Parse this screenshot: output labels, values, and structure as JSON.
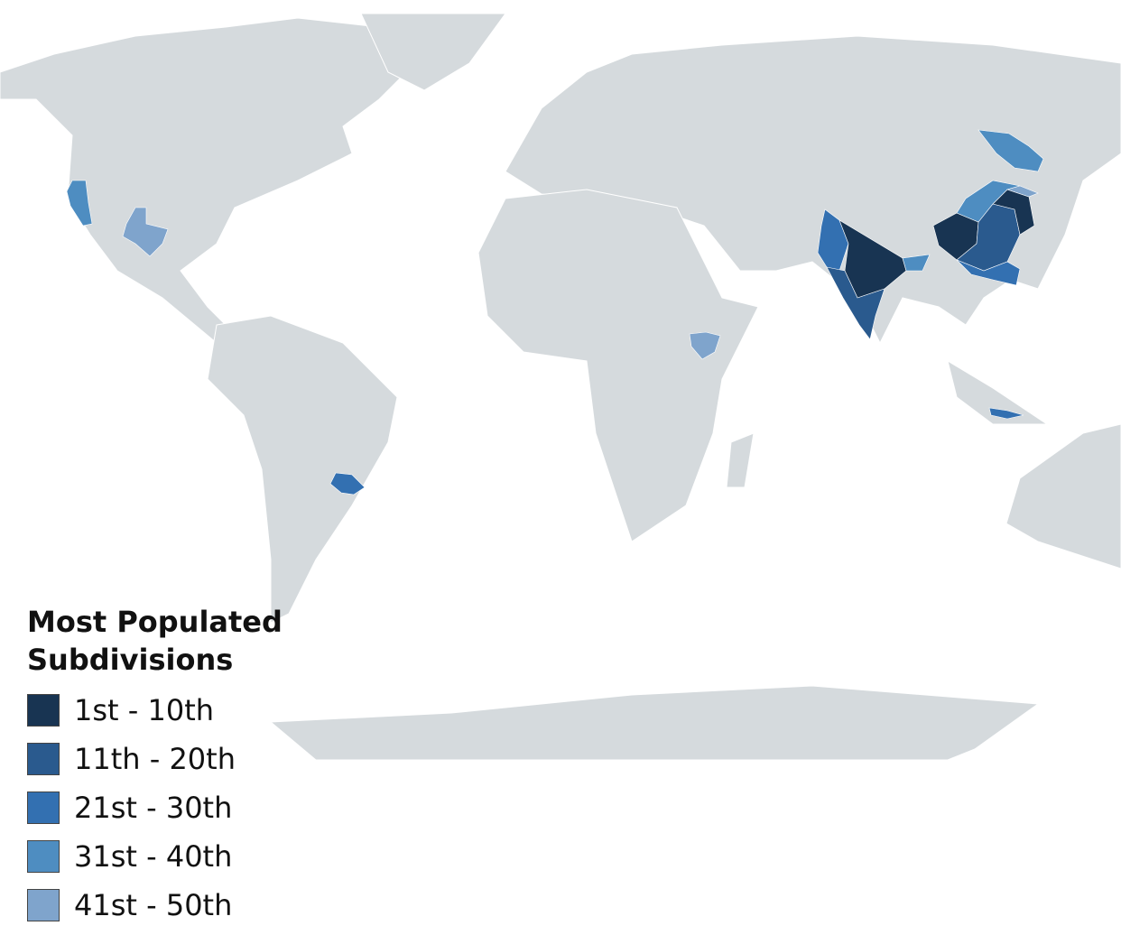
{
  "legend": {
    "title": "Most Populated Subdivisions",
    "items": [
      {
        "label": "1st - 10th",
        "color": "#183452"
      },
      {
        "label": "11th - 20th",
        "color": "#2a5a8e"
      },
      {
        "label": "21st - 30th",
        "color": "#3370b1"
      },
      {
        "label": "31st - 40th",
        "color": "#4e8dc1"
      },
      {
        "label": "41st - 50th",
        "color": "#7fa4cc"
      }
    ]
  }
}
